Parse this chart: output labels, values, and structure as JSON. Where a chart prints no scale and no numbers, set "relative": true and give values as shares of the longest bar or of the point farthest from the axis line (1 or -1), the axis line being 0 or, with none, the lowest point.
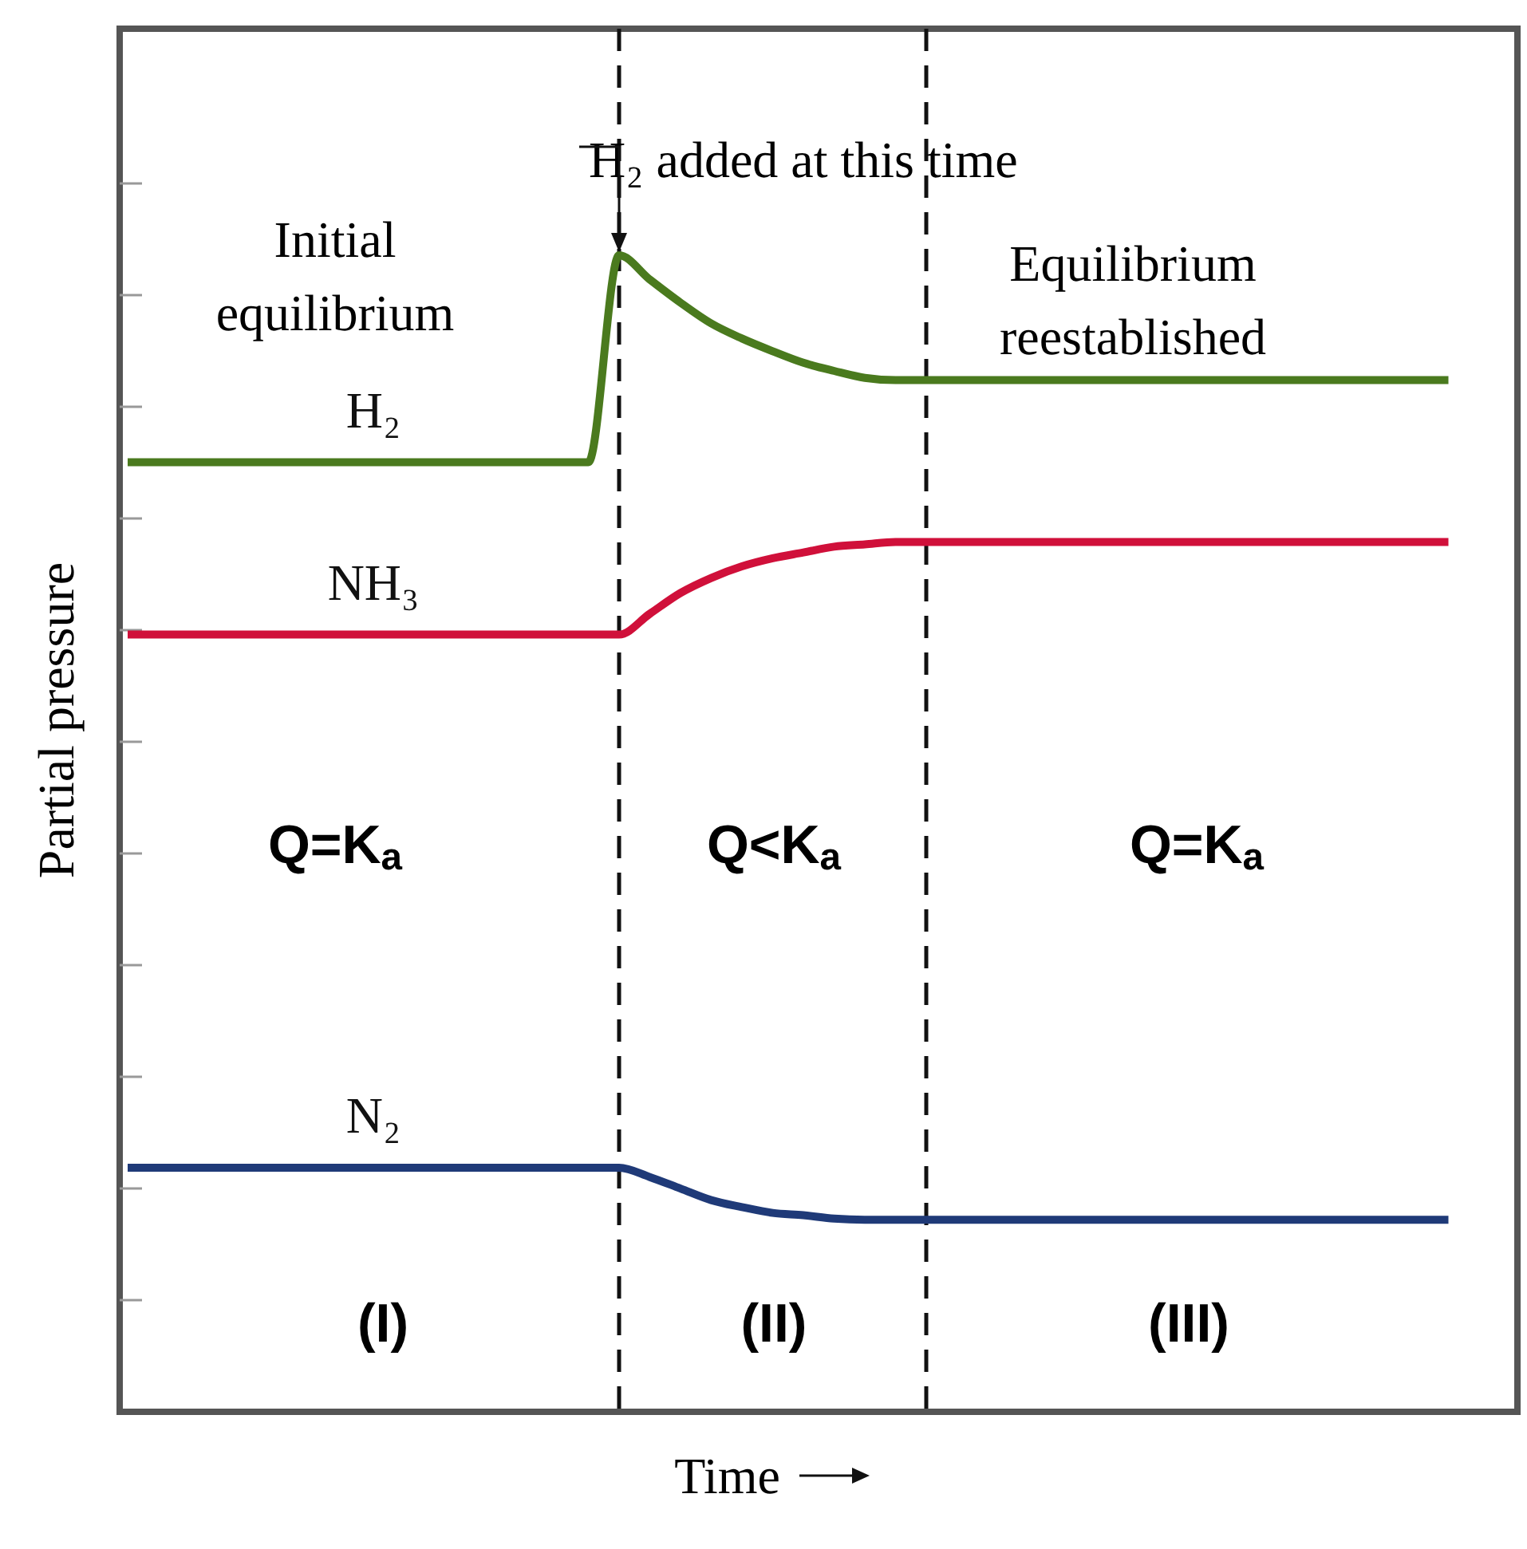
{
  "chart_data": {
    "type": "line",
    "relative": true,
    "xlabel": "Time",
    "ylabel": "Partial pressure",
    "categories": [
      null,
      null,
      null,
      null,
      null,
      null,
      null,
      null,
      null,
      null,
      null,
      null,
      null,
      null,
      null,
      null,
      null,
      null,
      null,
      null,
      null,
      null,
      null,
      null,
      null,
      null,
      null,
      null,
      null,
      null,
      null,
      null,
      null,
      null,
      null,
      null,
      null,
      null,
      null,
      null,
      null,
      null,
      null,
      null
    ],
    "series": [
      {
        "name": "H₂",
        "color": "#4a7a1e",
        "values": [
          0.821,
          0.821,
          0.821,
          0.821,
          0.821,
          0.821,
          0.821,
          0.821,
          0.821,
          0.821,
          0.821,
          0.821,
          0.821,
          0.821,
          0.821,
          0.821,
          1.0,
          0.979,
          0.959,
          0.941,
          0.928,
          0.917,
          0.907,
          0.9,
          0.894,
          0.892,
          0.892,
          0.892,
          0.892,
          0.892,
          0.892,
          0.892,
          0.892,
          0.892,
          0.892,
          0.892,
          0.892,
          0.892,
          0.892,
          0.892,
          0.892,
          0.892,
          0.892,
          0.892
        ]
      },
      {
        "name": "NH₃",
        "color": "#d0103a",
        "values": [
          0.672,
          0.672,
          0.672,
          0.672,
          0.672,
          0.672,
          0.672,
          0.672,
          0.672,
          0.672,
          0.672,
          0.672,
          0.672,
          0.672,
          0.672,
          0.672,
          0.672,
          0.69,
          0.708,
          0.721,
          0.731,
          0.738,
          0.743,
          0.748,
          0.75,
          0.752,
          0.752,
          0.752,
          0.752,
          0.752,
          0.752,
          0.752,
          0.752,
          0.752,
          0.752,
          0.752,
          0.752,
          0.752,
          0.752,
          0.752,
          0.752,
          0.752,
          0.752,
          0.752
        ]
      },
      {
        "name": "N₂",
        "color": "#1f3a78",
        "values": [
          0.211,
          0.211,
          0.211,
          0.211,
          0.211,
          0.211,
          0.211,
          0.211,
          0.211,
          0.211,
          0.211,
          0.211,
          0.211,
          0.211,
          0.211,
          0.211,
          0.211,
          0.203,
          0.193,
          0.183,
          0.177,
          0.172,
          0.17,
          0.167,
          0.166,
          0.166,
          0.166,
          0.166,
          0.166,
          0.166,
          0.166,
          0.166,
          0.166,
          0.166,
          0.166,
          0.166,
          0.166,
          0.166,
          0.166,
          0.166,
          0.166,
          0.166,
          0.166,
          0.166
        ]
      }
    ],
    "annotations": [
      "Initial equilibrium",
      "H₂ added at this time",
      "Equilibrium reestablished",
      "Q=K$_{a}$",
      "Q<K$_{a}$",
      "Q=K$_{a}$",
      "(I)",
      "(II)",
      "(III)"
    ]
  }
}
